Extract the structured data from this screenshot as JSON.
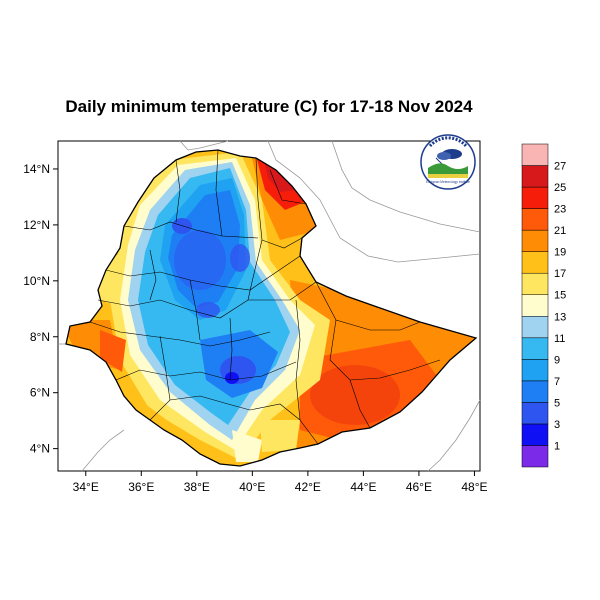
{
  "title": "Daily minimum temperature (C) for 17-18 Nov 2024",
  "chart_data": {
    "type": "heatmap",
    "title": "Daily minimum temperature (C) for 17-18 Nov 2024",
    "xlim": [
      33,
      48.2
    ],
    "ylim": [
      3.2,
      15
    ],
    "x_ticks": [
      {
        "value": 34,
        "label": "34°E"
      },
      {
        "value": 36,
        "label": "36°E"
      },
      {
        "value": 38,
        "label": "38°E"
      },
      {
        "value": 40,
        "label": "40°E"
      },
      {
        "value": 42,
        "label": "42°E"
      },
      {
        "value": 44,
        "label": "44°E"
      },
      {
        "value": 46,
        "label": "46°E"
      },
      {
        "value": 48,
        "label": "48°E"
      }
    ],
    "y_ticks": [
      {
        "value": 14,
        "label": "14°N"
      },
      {
        "value": 12,
        "label": "12°N"
      },
      {
        "value": 10,
        "label": "10°N"
      },
      {
        "value": 8,
        "label": "8°N"
      },
      {
        "value": 6,
        "label": "6°N"
      },
      {
        "value": 4,
        "label": "4°N"
      }
    ],
    "colorbar": {
      "colors": [
        "#7b2be8",
        "#1010f5",
        "#2f55f0",
        "#1e7ff5",
        "#1fa2f2",
        "#36b9f0",
        "#9fd3f0",
        "#fffccd",
        "#ffe660",
        "#ffc01a",
        "#ff8c05",
        "#ff5a0a",
        "#f61e0a",
        "#d7191c",
        "#f9b4b4"
      ],
      "labels": [
        "1",
        "3",
        "5",
        "7",
        "9",
        "11",
        "13",
        "15",
        "17",
        "19",
        "21",
        "23",
        "25",
        "27"
      ]
    }
  },
  "logo": {
    "text": "Ethiopian Meteorology Institute"
  }
}
